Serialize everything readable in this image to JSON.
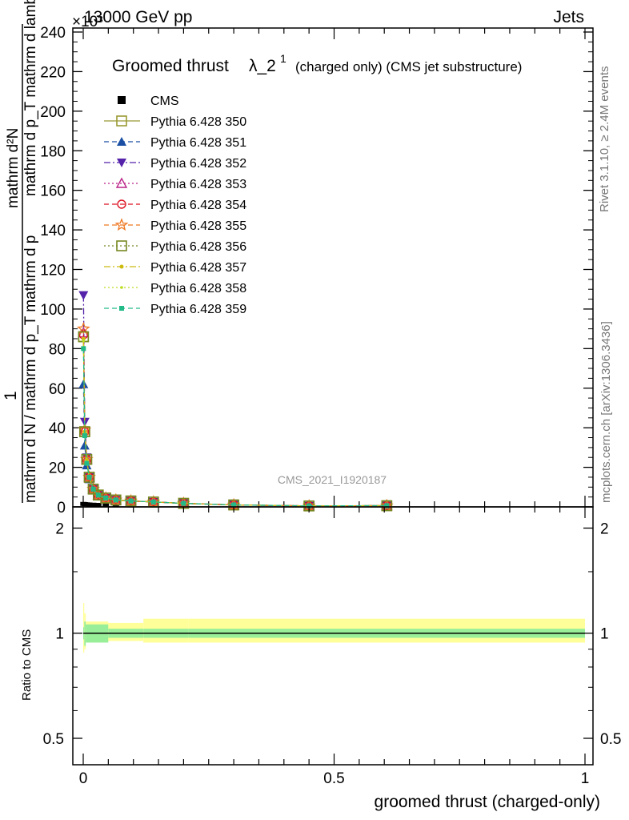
{
  "header": {
    "left": "13000 GeV pp",
    "right": "Jets",
    "exponent": "×10³"
  },
  "side_texts": {
    "rivet": "Rivet 3.1.10, ≥ 2.4M events",
    "mcplots": "mcplots.cern.ch [arXiv:1306.3436]"
  },
  "watermark": "CMS_2021_I1920187",
  "chart_data": [
    {
      "type": "line",
      "title": "Groomed thrust λ_2¹ (charged only) (CMS jet substructure)",
      "title_main": "Groomed thrust",
      "title_lambda": "λ_2",
      "title_sup": "1",
      "title_rest": "(charged only) (CMS jet substructure)",
      "ylabel_top": "1",
      "ylabel_bottom": "mathrm d N / mathrm d p_T mathrm d p_T mathrm d lambda",
      "ylabel_num": "mathrm d²N",
      "ylabel_den": "mathrm d p_T mathrm d lambda",
      "ylabel_display_top": "mathrm d²N",
      "ylabel_display_mid": "mathrm d p_T mathrm d lambda",
      "ylabel_display_bottom": "mathrm d N / mathrm d p_T mathrm d p",
      "xlim": [
        0,
        1
      ],
      "ylim": [
        0,
        240
      ],
      "y_scale_note": "×10³",
      "yticks": [
        "0",
        "20",
        "40",
        "60",
        "80",
        "100",
        "120",
        "140",
        "160",
        "180",
        "200",
        "220",
        "240"
      ],
      "legend": [
        "CMS",
        "Pythia 6.428 350",
        "Pythia 6.428 351",
        "Pythia 6.428 352",
        "Pythia 6.428 353",
        "Pythia 6.428 354",
        "Pythia 6.428 355",
        "Pythia 6.428 356",
        "Pythia 6.428 357",
        "Pythia 6.428 358",
        "Pythia 6.428 359"
      ],
      "legend_placement": "top-left",
      "x": [
        0.0005,
        0.003,
        0.007,
        0.012,
        0.02,
        0.03,
        0.045,
        0.065,
        0.095,
        0.14,
        0.2,
        0.3,
        0.45,
        0.605
      ],
      "series": [
        {
          "name": "CMS",
          "color": "#000000",
          "marker": "square-filled",
          "values": [
            0.9,
            0.8,
            0.7,
            0.6,
            0.5,
            0.4,
            0.3,
            0.2,
            0.15,
            0.1,
            0.05,
            0.02,
            0.01,
            0.0
          ]
        },
        {
          "name": "Pythia 6.428 350",
          "color": "#999933",
          "marker": "square-open",
          "values": [
            86,
            38,
            24,
            15,
            9,
            6,
            4.5,
            3.5,
            3,
            2.5,
            1.8,
            1.0,
            0.5,
            0.6
          ]
        },
        {
          "name": "Pythia 6.428 351",
          "color": "#1a4fa3",
          "marker": "triangle-up",
          "values": [
            62,
            31,
            21,
            14,
            9,
            6,
            4.5,
            3.5,
            3,
            2.5,
            1.8,
            1.0,
            0.5,
            0.6
          ]
        },
        {
          "name": "Pythia 6.428 352",
          "color": "#5522aa",
          "marker": "triangle-down",
          "values": [
            107,
            43,
            25,
            15,
            9,
            6,
            4.5,
            3.5,
            3,
            2.5,
            1.8,
            1.0,
            0.5,
            0.6
          ]
        },
        {
          "name": "Pythia 6.428 353",
          "color": "#bb2288",
          "marker": "triangle-open",
          "values": [
            88,
            39,
            24,
            15,
            9,
            6,
            4.5,
            3.5,
            3,
            2.5,
            1.8,
            1.0,
            0.5,
            0.6
          ]
        },
        {
          "name": "Pythia 6.428 354",
          "color": "#dd1122",
          "marker": "circle-open",
          "values": [
            87,
            38,
            24,
            15,
            9,
            6,
            4.5,
            3.5,
            3,
            2.5,
            1.8,
            1.0,
            0.5,
            0.6
          ]
        },
        {
          "name": "Pythia 6.428 355",
          "color": "#ee7722",
          "marker": "star",
          "values": [
            90,
            39,
            24,
            15,
            9,
            6,
            4.5,
            3.5,
            3,
            2.5,
            1.8,
            1.0,
            0.5,
            0.6
          ]
        },
        {
          "name": "Pythia 6.428 356",
          "color": "#778822",
          "marker": "square-open",
          "values": [
            86,
            38,
            24,
            15,
            9,
            6,
            4.5,
            3.5,
            3,
            2.5,
            1.8,
            1.0,
            0.5,
            0.6
          ]
        },
        {
          "name": "Pythia 6.428 357",
          "color": "#ccbb11",
          "marker": "dot",
          "values": [
            85,
            38,
            24,
            15,
            9,
            6,
            4.5,
            3.5,
            3,
            2.5,
            1.8,
            1.0,
            0.5,
            0.6
          ]
        },
        {
          "name": "Pythia 6.428 358",
          "color": "#bbdd22",
          "marker": "dot-small",
          "values": [
            84,
            37,
            23,
            15,
            9,
            6,
            4.5,
            3.5,
            3,
            2.5,
            1.8,
            1.0,
            0.5,
            0.6
          ]
        },
        {
          "name": "Pythia 6.428 359",
          "color": "#22bb88",
          "marker": "square-small",
          "values": [
            80,
            36,
            22,
            15,
            9,
            6,
            4.5,
            3.5,
            3,
            2.5,
            1.8,
            1.0,
            0.5,
            0.6
          ]
        }
      ],
      "dash_styles": [
        "solid",
        "solid",
        "dashed",
        "dashdot",
        "dotted",
        "dashed",
        "dashed",
        "dotted",
        "dashdot",
        "dotted",
        "dashed"
      ]
    },
    {
      "type": "area",
      "ylabel": "Ratio to CMS",
      "xlabel": "groomed thrust (charged-only)",
      "xlim": [
        0,
        1
      ],
      "ylim": [
        0.42,
        2.3
      ],
      "y_scale": "log",
      "yticks": [
        "0.5",
        "1",
        "2"
      ],
      "xticks": [
        "0",
        "0.5",
        "1"
      ],
      "reference": 1,
      "band_edges": [
        0,
        0.002,
        0.005,
        0.05,
        0.12,
        0.21,
        1.0
      ],
      "inner_band": [
        [
          0.96,
          1.04
        ],
        [
          0.92,
          1.08
        ],
        [
          0.94,
          1.06
        ],
        [
          0.97,
          1.03
        ],
        [
          0.97,
          1.03
        ],
        [
          0.97,
          1.03
        ]
      ],
      "outer_band": [
        [
          0.88,
          1.22
        ],
        [
          0.9,
          1.14
        ],
        [
          0.95,
          1.08
        ],
        [
          0.95,
          1.07
        ],
        [
          0.94,
          1.1
        ],
        [
          0.94,
          1.1
        ]
      ],
      "inner_color": "#99ee99",
      "outer_color": "#ffff99"
    }
  ]
}
